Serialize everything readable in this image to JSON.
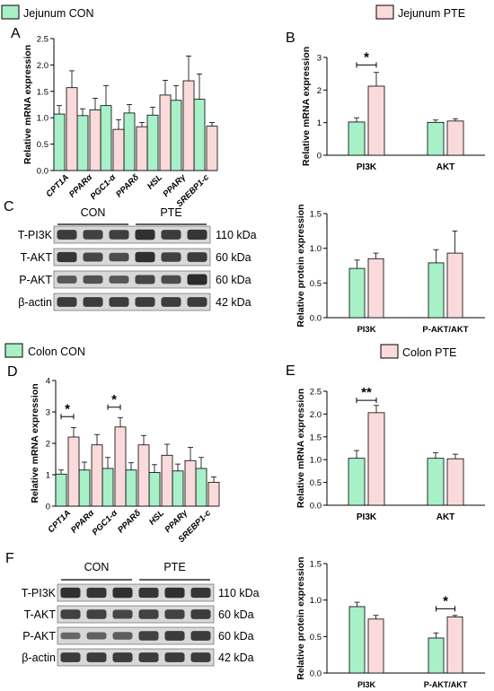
{
  "colors": {
    "con": "#a8f0c8",
    "pte": "#fadada",
    "blot_bg": "#d8d8d8",
    "band": "#222222"
  },
  "legends": [
    {
      "id": "leg-jejunum-con",
      "label": "Jejunum CON",
      "series": "con"
    },
    {
      "id": "leg-jejunum-pte",
      "label": "Jejunum PTE",
      "series": "pte"
    },
    {
      "id": "leg-colon-con",
      "label": "Colon CON",
      "series": "con"
    },
    {
      "id": "leg-colon-pte",
      "label": "Colon PTE",
      "series": "pte"
    }
  ],
  "panels": {
    "A": {
      "letter": "A"
    },
    "B": {
      "letter": "B"
    },
    "C": {
      "letter": "C"
    },
    "D": {
      "letter": "D"
    },
    "E": {
      "letter": "E"
    },
    "F": {
      "letter": "F"
    }
  },
  "blots": [
    {
      "id": "blot-jejunum",
      "groups": [
        "CON",
        "PTE"
      ],
      "rows": [
        {
          "label": "T-PI3K",
          "size": "110 kDa",
          "con": [
            0.85,
            0.8,
            0.82
          ],
          "pte": [
            0.95,
            0.85,
            0.9
          ]
        },
        {
          "label": "T-AKT",
          "size": "60 kDa",
          "con": [
            0.9,
            0.75,
            0.7
          ],
          "pte": [
            0.95,
            0.8,
            0.85
          ]
        },
        {
          "label": "P-AKT",
          "size": "60 kDa",
          "con": [
            0.6,
            0.65,
            0.6
          ],
          "pte": [
            0.75,
            0.7,
            1.0
          ]
        },
        {
          "label": "β-actin",
          "size": "42 kDa",
          "con": [
            0.85,
            0.85,
            0.85
          ],
          "pte": [
            0.85,
            0.85,
            0.85
          ]
        }
      ]
    },
    {
      "id": "blot-colon",
      "groups": [
        "CON",
        "PTE"
      ],
      "rows": [
        {
          "label": "T-PI3K",
          "size": "110 kDa",
          "con": [
            0.95,
            0.9,
            0.95
          ],
          "pte": [
            0.9,
            0.95,
            0.9
          ]
        },
        {
          "label": "T-AKT",
          "size": "60 kDa",
          "con": [
            0.8,
            0.8,
            0.75
          ],
          "pte": [
            0.8,
            0.8,
            0.85
          ]
        },
        {
          "label": "P-AKT",
          "size": "60 kDa",
          "con": [
            0.45,
            0.5,
            0.55
          ],
          "pte": [
            0.8,
            0.85,
            0.85
          ]
        },
        {
          "label": "β-actin",
          "size": "42 kDa",
          "con": [
            0.85,
            0.85,
            0.85
          ],
          "pte": [
            0.85,
            0.85,
            0.85
          ]
        }
      ]
    }
  ],
  "chart_data": [
    {
      "id": "A",
      "type": "bar",
      "ylabel": "Relative mRNA expression",
      "ylim": [
        0,
        2.5
      ],
      "yticks": [
        0,
        0.5,
        1.0,
        1.5,
        2.0,
        2.5
      ],
      "categories": [
        "CPT1A",
        "PPARα",
        "PGC1-α",
        "PPARδ",
        "HSL",
        "PPARγ",
        "SREBP1-c"
      ],
      "series": [
        {
          "name": "Jejunum CON",
          "key": "con",
          "values": [
            1.07,
            1.04,
            1.23,
            1.09,
            1.05,
            1.33,
            1.35
          ],
          "err": [
            0.16,
            0.13,
            0.38,
            0.16,
            0.15,
            0.28,
            0.48
          ]
        },
        {
          "name": "Jejunum PTE",
          "key": "pte",
          "values": [
            1.57,
            1.15,
            0.78,
            0.83,
            1.43,
            1.7,
            0.84
          ],
          "err": [
            0.32,
            0.22,
            0.18,
            0.08,
            0.28,
            0.47,
            0.07
          ]
        }
      ],
      "sig": []
    },
    {
      "id": "B",
      "type": "bar",
      "ylabel": "Relative mRNA expression",
      "ylim": [
        0,
        3
      ],
      "yticks": [
        0,
        1,
        2,
        3
      ],
      "categories": [
        "PI3K",
        "AKT"
      ],
      "series": [
        {
          "name": "Jejunum CON",
          "key": "con",
          "values": [
            1.02,
            1.01
          ],
          "err": [
            0.13,
            0.07
          ]
        },
        {
          "name": "Jejunum PTE",
          "key": "pte",
          "values": [
            2.12,
            1.05
          ],
          "err": [
            0.42,
            0.07
          ]
        }
      ],
      "sig": [
        {
          "cat": 0,
          "label": "*",
          "y": 2.77
        }
      ]
    },
    {
      "id": "C",
      "type": "bar",
      "ylabel": "Relative protein expression",
      "ylim": [
        0,
        1.5
      ],
      "yticks": [
        0,
        0.5,
        1.0,
        1.5
      ],
      "categories": [
        "PI3K",
        "P-AKT/AKT"
      ],
      "series": [
        {
          "name": "CON",
          "key": "con",
          "values": [
            0.71,
            0.79
          ],
          "err": [
            0.12,
            0.19
          ]
        },
        {
          "name": "PTE",
          "key": "pte",
          "values": [
            0.85,
            0.93
          ],
          "err": [
            0.08,
            0.32
          ]
        }
      ],
      "sig": []
    },
    {
      "id": "D",
      "type": "bar",
      "ylabel": "Relative mRNA expression",
      "ylim": [
        0,
        4
      ],
      "yticks": [
        0,
        1,
        2,
        3,
        4
      ],
      "categories": [
        "CPT1A",
        "PPARα",
        "PGC1-α",
        "PPARδ",
        "HSL",
        "PPARγ",
        "SREBP1-c"
      ],
      "series": [
        {
          "name": "Colon CON",
          "key": "con",
          "values": [
            1.02,
            1.15,
            1.2,
            1.15,
            1.07,
            1.12,
            1.2
          ],
          "err": [
            0.13,
            0.25,
            0.35,
            0.23,
            0.25,
            0.22,
            0.35
          ]
        },
        {
          "name": "Colon PTE",
          "key": "pte",
          "values": [
            2.2,
            1.95,
            2.52,
            1.95,
            1.62,
            1.45,
            0.76
          ],
          "err": [
            0.3,
            0.33,
            0.3,
            0.3,
            0.35,
            0.42,
            0.17
          ]
        }
      ],
      "sig": [
        {
          "cat": 0,
          "label": "*",
          "y": 2.85
        },
        {
          "cat": 2,
          "label": "*",
          "y": 3.15
        }
      ]
    },
    {
      "id": "E",
      "type": "bar",
      "ylabel": "Relative mRNA expression",
      "ylim": [
        0,
        2.5
      ],
      "yticks": [
        0,
        0.5,
        1.0,
        1.5,
        2.0,
        2.5
      ],
      "categories": [
        "PI3K",
        "AKT"
      ],
      "series": [
        {
          "name": "Colon CON",
          "key": "con",
          "values": [
            1.03,
            1.03
          ],
          "err": [
            0.17,
            0.12
          ]
        },
        {
          "name": "Colon PTE",
          "key": "pte",
          "values": [
            2.03,
            1.02
          ],
          "err": [
            0.16,
            0.1
          ]
        }
      ],
      "sig": [
        {
          "cat": 0,
          "label": "**",
          "y": 2.3
        }
      ]
    },
    {
      "id": "F",
      "type": "bar",
      "ylabel": "Relative protein expression",
      "ylim": [
        0,
        1.5
      ],
      "yticks": [
        0,
        0.5,
        1.0,
        1.5
      ],
      "categories": [
        "PI3K",
        "P-AKT/AKT"
      ],
      "series": [
        {
          "name": "CON",
          "key": "con",
          "values": [
            0.91,
            0.48
          ],
          "err": [
            0.06,
            0.07
          ]
        },
        {
          "name": "PTE",
          "key": "pte",
          "values": [
            0.74,
            0.77
          ],
          "err": [
            0.05,
            0.02
          ]
        }
      ],
      "sig": [
        {
          "cat": 1,
          "label": "*",
          "y": 0.88
        }
      ]
    }
  ]
}
